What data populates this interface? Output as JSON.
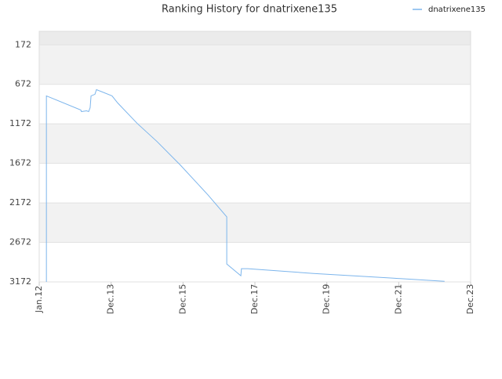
{
  "chart_data": {
    "type": "line",
    "title": "Ranking History for dnatrixene135",
    "x": [
      2.4,
      2.4,
      13.9,
      14.1,
      15.8,
      16.5,
      17.0,
      17.3,
      18.6,
      19.1,
      24.3,
      26.2,
      32.7,
      39.3,
      47.1,
      56.3,
      62.6,
      62.6,
      67.3,
      67.5,
      69.6,
      91.6,
      117.8,
      135.3
    ],
    "series": [
      {
        "name": "dnatrixene135",
        "color": "#7cb5ec",
        "values": [
          3172,
          818,
          997,
          1017,
          1007,
          1017,
          967,
          818,
          798,
          739,
          818,
          908,
          1166,
          1395,
          1693,
          2070,
          2349,
          2945,
          3094,
          3005,
          3005,
          3065,
          3124,
          3164
        ]
      }
    ],
    "xlim": [
      0,
      144
    ],
    "xticks": [
      {
        "value": 0,
        "label": "Jan.12"
      },
      {
        "value": 24,
        "label": "Dec.13"
      },
      {
        "value": 48,
        "label": "Dec.15"
      },
      {
        "value": 72,
        "label": "Dec.17"
      },
      {
        "value": 96,
        "label": "Dec.19"
      },
      {
        "value": 120,
        "label": "Dec.21"
      },
      {
        "value": 144,
        "label": "Dec.23"
      }
    ],
    "ylim": [
      3172,
      1
    ],
    "yticks": [
      172,
      672,
      1172,
      1672,
      2172,
      2672,
      3172
    ],
    "grid": true,
    "legend": "top-right"
  }
}
